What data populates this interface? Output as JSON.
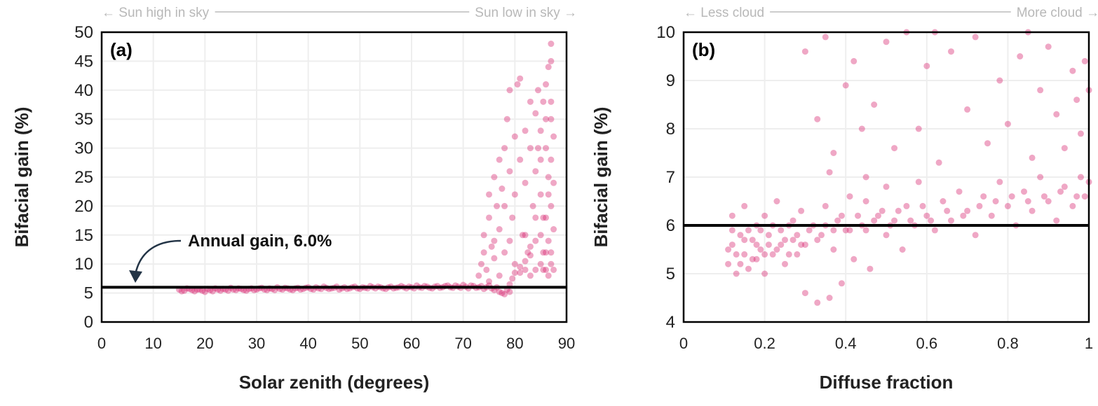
{
  "chart_data": [
    {
      "type": "scatter",
      "panel_label": "(a)",
      "xlabel": "Solar zenith (degrees)",
      "ylabel": "Bifacial gain (%)",
      "xlim": [
        0,
        90
      ],
      "ylim": [
        0,
        50
      ],
      "xticks": [
        0,
        10,
        20,
        30,
        40,
        50,
        60,
        70,
        80,
        90
      ],
      "yticks": [
        0,
        5,
        10,
        15,
        20,
        25,
        30,
        35,
        40,
        45,
        50
      ],
      "grid": true,
      "marker_color": "#d6246e",
      "top_left_note": "← Sun high in sky",
      "top_right_note": "Sun low in sky →",
      "reference_line": {
        "y": 6.0,
        "label": "Annual gain, 6.0%"
      },
      "points": [
        [
          15,
          5.6
        ],
        [
          16,
          5.4
        ],
        [
          17,
          5.7
        ],
        [
          18,
          5.3
        ],
        [
          19,
          5.6
        ],
        [
          20,
          5.2
        ],
        [
          21,
          5.5
        ],
        [
          22,
          5.8
        ],
        [
          23,
          5.4
        ],
        [
          24,
          5.6
        ],
        [
          25,
          5.9
        ],
        [
          26,
          5.5
        ],
        [
          27,
          5.7
        ],
        [
          28,
          5.4
        ],
        [
          29,
          5.8
        ],
        [
          30,
          5.6
        ],
        [
          31,
          5.9
        ],
        [
          32,
          5.5
        ],
        [
          33,
          5.7
        ],
        [
          34,
          6.0
        ],
        [
          35,
          5.6
        ],
        [
          36,
          5.8
        ],
        [
          37,
          5.5
        ],
        [
          38,
          5.9
        ],
        [
          39,
          5.7
        ],
        [
          40,
          6.0
        ],
        [
          41,
          5.6
        ],
        [
          42,
          5.8
        ],
        [
          43,
          6.1
        ],
        [
          44,
          5.7
        ],
        [
          45,
          5.9
        ],
        [
          46,
          5.6
        ],
        [
          47,
          6.0
        ],
        [
          48,
          5.8
        ],
        [
          49,
          6.1
        ],
        [
          50,
          5.7
        ],
        [
          51,
          5.9
        ],
        [
          52,
          6.2
        ],
        [
          53,
          5.8
        ],
        [
          54,
          6.0
        ],
        [
          55,
          5.7
        ],
        [
          56,
          6.1
        ],
        [
          57,
          5.9
        ],
        [
          58,
          6.2
        ],
        [
          59,
          5.8
        ],
        [
          60,
          6.0
        ],
        [
          61,
          6.3
        ],
        [
          62,
          5.9
        ],
        [
          63,
          6.1
        ],
        [
          64,
          5.8
        ],
        [
          65,
          6.2
        ],
        [
          66,
          6.0
        ],
        [
          67,
          6.3
        ],
        [
          68,
          5.9
        ],
        [
          69,
          6.1
        ],
        [
          70,
          6.4
        ],
        [
          71,
          5.8
        ],
        [
          72,
          6.2
        ],
        [
          73,
          6.0
        ],
        [
          74,
          5.7
        ],
        [
          75,
          6.3
        ],
        [
          76,
          5.5
        ],
        [
          77,
          5.2
        ],
        [
          78,
          4.8
        ],
        [
          77.5,
          5.0
        ],
        [
          79,
          6.5
        ],
        [
          79.5,
          7.5
        ],
        [
          80,
          8.5
        ],
        [
          81,
          9.5
        ],
        [
          82,
          10.5
        ],
        [
          83,
          11.5
        ],
        [
          15.5,
          5.3
        ],
        [
          16.5,
          5.8
        ],
        [
          17.5,
          5.5
        ],
        [
          18.5,
          5.6
        ],
        [
          19.5,
          5.4
        ],
        [
          20.5,
          5.7
        ],
        [
          21.5,
          5.3
        ],
        [
          22.5,
          5.6
        ],
        [
          23.5,
          5.7
        ],
        [
          24.5,
          5.4
        ],
        [
          25.5,
          5.6
        ],
        [
          26.5,
          5.8
        ],
        [
          27.5,
          5.5
        ],
        [
          28.5,
          5.7
        ],
        [
          29.5,
          5.5
        ],
        [
          30.5,
          5.8
        ],
        [
          31.5,
          5.6
        ],
        [
          32.5,
          5.8
        ],
        [
          33.5,
          5.5
        ],
        [
          34.5,
          5.7
        ],
        [
          35.5,
          5.9
        ],
        [
          36.5,
          5.6
        ],
        [
          37.5,
          5.8
        ],
        [
          38.5,
          5.6
        ],
        [
          39.5,
          5.9
        ],
        [
          40.5,
          5.7
        ],
        [
          41.5,
          6.0
        ],
        [
          42.5,
          5.7
        ],
        [
          43.5,
          5.9
        ],
        [
          44.5,
          5.8
        ],
        [
          45.5,
          6.1
        ],
        [
          46.5,
          5.8
        ],
        [
          47.5,
          5.7
        ],
        [
          48.5,
          6.0
        ],
        [
          49.5,
          5.8
        ],
        [
          50.5,
          6.0
        ],
        [
          51.5,
          5.8
        ],
        [
          52.5,
          6.0
        ],
        [
          53.5,
          6.1
        ],
        [
          54.5,
          5.8
        ],
        [
          55.5,
          6.0
        ],
        [
          56.5,
          5.8
        ],
        [
          57.5,
          6.0
        ],
        [
          58.5,
          6.0
        ],
        [
          59.5,
          6.1
        ],
        [
          60.5,
          5.8
        ],
        [
          61.5,
          6.0
        ],
        [
          62.5,
          6.2
        ],
        [
          63.5,
          5.9
        ],
        [
          64.5,
          6.1
        ],
        [
          65.5,
          5.9
        ],
        [
          66.5,
          6.2
        ],
        [
          67.5,
          6.0
        ],
        [
          68.5,
          6.3
        ],
        [
          69.5,
          5.9
        ],
        [
          70.5,
          6.1
        ],
        [
          71.5,
          6.3
        ],
        [
          72.5,
          5.9
        ],
        [
          73.5,
          6.2
        ],
        [
          74.5,
          6.0
        ],
        [
          75.5,
          5.8
        ],
        [
          76.5,
          6.0
        ],
        [
          78.5,
          5.6
        ],
        [
          79,
          5.2
        ],
        [
          73,
          8
        ],
        [
          73.5,
          10
        ],
        [
          74,
          12
        ],
        [
          74,
          15
        ],
        [
          74.5,
          9
        ],
        [
          75,
          18
        ],
        [
          75,
          22
        ],
        [
          75.5,
          13
        ],
        [
          76,
          25
        ],
        [
          76,
          11
        ],
        [
          76.5,
          20
        ],
        [
          77,
          28
        ],
        [
          77,
          16
        ],
        [
          77.5,
          23
        ],
        [
          78,
          30
        ],
        [
          78,
          12
        ],
        [
          78.5,
          35
        ],
        [
          79,
          26
        ],
        [
          79,
          40
        ],
        [
          79.5,
          18
        ],
        [
          80,
          32
        ],
        [
          80,
          22
        ],
        [
          80.5,
          41
        ],
        [
          81,
          42
        ],
        [
          81,
          28
        ],
        [
          81.5,
          15
        ],
        [
          82,
          33
        ],
        [
          82,
          24
        ],
        [
          82.5,
          12
        ],
        [
          83,
          38
        ],
        [
          83,
          30
        ],
        [
          83.5,
          20
        ],
        [
          84,
          36
        ],
        [
          84,
          26
        ],
        [
          84,
          14
        ],
        [
          84.5,
          40
        ],
        [
          85,
          33
        ],
        [
          85,
          22
        ],
        [
          85,
          10
        ],
        [
          85.5,
          38
        ],
        [
          86,
          41
        ],
        [
          86,
          30
        ],
        [
          86,
          18
        ],
        [
          86,
          9
        ],
        [
          86.5,
          44
        ],
        [
          86.5,
          25
        ],
        [
          87,
          48
        ],
        [
          87,
          45
        ],
        [
          87,
          35
        ],
        [
          87,
          28
        ],
        [
          87,
          20
        ],
        [
          87,
          12
        ],
        [
          87.5,
          32
        ],
        [
          87.5,
          16
        ],
        [
          86.5,
          14
        ],
        [
          85.5,
          12
        ],
        [
          84,
          9
        ],
        [
          83,
          8
        ],
        [
          82,
          9
        ],
        [
          81,
          8.5
        ],
        [
          80,
          10
        ],
        [
          79,
          14
        ],
        [
          78,
          20
        ],
        [
          77,
          8
        ],
        [
          76,
          14
        ],
        [
          75,
          7
        ],
        [
          84.5,
          30
        ],
        [
          85,
          28
        ],
        [
          86,
          35
        ],
        [
          87,
          38
        ],
        [
          86.5,
          22
        ],
        [
          85.5,
          18
        ],
        [
          86,
          12
        ],
        [
          87,
          10
        ],
        [
          85,
          15
        ],
        [
          84,
          18
        ],
        [
          83,
          13
        ],
        [
          82,
          15
        ],
        [
          86.5,
          8
        ],
        [
          85.5,
          9
        ],
        [
          87.5,
          24
        ],
        [
          87.5,
          9
        ]
      ]
    },
    {
      "type": "scatter",
      "panel_label": "(b)",
      "xlabel": "Diffuse fraction",
      "ylabel": "Bifacial gain (%)",
      "xlim": [
        0,
        1
      ],
      "ylim": [
        4,
        10
      ],
      "xticks": [
        "0",
        "0.2",
        "0.4",
        "0.6",
        "0.8",
        "1"
      ],
      "yticks": [
        4,
        5,
        6,
        7,
        8,
        9,
        10
      ],
      "grid": true,
      "marker_color": "#d6246e",
      "top_left_note": "← Less cloud",
      "top_right_note": "More cloud →",
      "reference_line": {
        "y": 6.0
      },
      "points": [
        [
          0.11,
          5.2
        ],
        [
          0.12,
          5.6
        ],
        [
          0.12,
          6.2
        ],
        [
          0.13,
          5.0
        ],
        [
          0.14,
          5.8
        ],
        [
          0.15,
          5.4
        ],
        [
          0.15,
          6.4
        ],
        [
          0.16,
          5.1
        ],
        [
          0.17,
          5.7
        ],
        [
          0.18,
          6.0
        ],
        [
          0.18,
          5.3
        ],
        [
          0.19,
          5.5
        ],
        [
          0.2,
          6.2
        ],
        [
          0.2,
          5.0
        ],
        [
          0.21,
          5.8
        ],
        [
          0.22,
          5.4
        ],
        [
          0.23,
          6.5
        ],
        [
          0.24,
          5.6
        ],
        [
          0.25,
          5.2
        ],
        [
          0.26,
          6.0
        ],
        [
          0.27,
          5.7
        ],
        [
          0.28,
          5.4
        ],
        [
          0.29,
          6.3
        ],
        [
          0.3,
          5.6
        ],
        [
          0.3,
          4.6
        ],
        [
          0.32,
          6.0
        ],
        [
          0.33,
          4.4
        ],
        [
          0.34,
          5.8
        ],
        [
          0.35,
          6.4
        ],
        [
          0.36,
          4.5
        ],
        [
          0.37,
          5.5
        ],
        [
          0.38,
          6.1
        ],
        [
          0.39,
          4.8
        ],
        [
          0.4,
          5.9
        ],
        [
          0.41,
          6.6
        ],
        [
          0.42,
          5.3
        ],
        [
          0.44,
          6.0
        ],
        [
          0.45,
          6.5
        ],
        [
          0.46,
          5.1
        ],
        [
          0.48,
          6.2
        ],
        [
          0.5,
          5.8
        ],
        [
          0.5,
          6.8
        ],
        [
          0.52,
          6.1
        ],
        [
          0.54,
          5.5
        ],
        [
          0.55,
          6.4
        ],
        [
          0.57,
          6.0
        ],
        [
          0.58,
          6.9
        ],
        [
          0.6,
          6.2
        ],
        [
          0.62,
          5.9
        ],
        [
          0.64,
          6.5
        ],
        [
          0.66,
          6.1
        ],
        [
          0.68,
          6.7
        ],
        [
          0.7,
          6.3
        ],
        [
          0.72,
          5.8
        ],
        [
          0.74,
          6.6
        ],
        [
          0.76,
          6.2
        ],
        [
          0.78,
          6.9
        ],
        [
          0.8,
          6.4
        ],
        [
          0.82,
          6.0
        ],
        [
          0.84,
          6.7
        ],
        [
          0.86,
          6.3
        ],
        [
          0.88,
          7.0
        ],
        [
          0.9,
          6.5
        ],
        [
          0.92,
          6.1
        ],
        [
          0.94,
          6.8
        ],
        [
          0.96,
          6.4
        ],
        [
          0.98,
          7.0
        ],
        [
          0.99,
          6.6
        ],
        [
          1.0,
          6.9
        ],
        [
          1.0,
          8.8
        ],
        [
          0.11,
          5.5
        ],
        [
          0.12,
          5.9
        ],
        [
          0.13,
          5.4
        ],
        [
          0.14,
          5.2
        ],
        [
          0.15,
          5.7
        ],
        [
          0.16,
          5.9
        ],
        [
          0.17,
          5.3
        ],
        [
          0.18,
          5.6
        ],
        [
          0.19,
          5.9
        ],
        [
          0.2,
          5.4
        ],
        [
          0.21,
          5.6
        ],
        [
          0.22,
          6.0
        ],
        [
          0.23,
          5.5
        ],
        [
          0.24,
          5.9
        ],
        [
          0.25,
          5.7
        ],
        [
          0.26,
          5.4
        ],
        [
          0.27,
          6.1
        ],
        [
          0.28,
          5.8
        ],
        [
          0.29,
          5.6
        ],
        [
          0.31,
          5.9
        ],
        [
          0.33,
          5.7
        ],
        [
          0.35,
          6.0
        ],
        [
          0.37,
          5.9
        ],
        [
          0.39,
          6.2
        ],
        [
          0.41,
          5.9
        ],
        [
          0.43,
          6.2
        ],
        [
          0.45,
          5.9
        ],
        [
          0.47,
          6.1
        ],
        [
          0.49,
          6.3
        ],
        [
          0.51,
          6.0
        ],
        [
          0.53,
          6.3
        ],
        [
          0.56,
          6.1
        ],
        [
          0.59,
          6.4
        ],
        [
          0.61,
          6.1
        ],
        [
          0.65,
          6.3
        ],
        [
          0.69,
          6.2
        ],
        [
          0.73,
          6.4
        ],
        [
          0.77,
          6.5
        ],
        [
          0.81,
          6.6
        ],
        [
          0.85,
          6.5
        ],
        [
          0.89,
          6.6
        ],
        [
          0.93,
          6.7
        ],
        [
          0.97,
          6.6
        ],
        [
          0.3,
          9.6
        ],
        [
          0.33,
          8.2
        ],
        [
          0.35,
          9.9
        ],
        [
          0.37,
          7.5
        ],
        [
          0.4,
          8.9
        ],
        [
          0.42,
          9.4
        ],
        [
          0.45,
          7.0
        ],
        [
          0.47,
          8.5
        ],
        [
          0.5,
          9.8
        ],
        [
          0.52,
          7.6
        ],
        [
          0.55,
          10.0
        ],
        [
          0.58,
          8.0
        ],
        [
          0.6,
          9.3
        ],
        [
          0.63,
          7.3
        ],
        [
          0.66,
          9.6
        ],
        [
          0.7,
          8.4
        ],
        [
          0.72,
          9.9
        ],
        [
          0.75,
          7.7
        ],
        [
          0.78,
          9.0
        ],
        [
          0.8,
          8.1
        ],
        [
          0.83,
          9.5
        ],
        [
          0.86,
          7.4
        ],
        [
          0.88,
          8.8
        ],
        [
          0.9,
          9.7
        ],
        [
          0.92,
          8.3
        ],
        [
          0.94,
          7.6
        ],
        [
          0.96,
          9.2
        ],
        [
          0.97,
          8.6
        ],
        [
          0.98,
          7.9
        ],
        [
          0.99,
          9.4
        ],
        [
          0.36,
          7.1
        ],
        [
          0.44,
          8.0
        ],
        [
          0.62,
          10.0
        ],
        [
          0.85,
          10.0
        ]
      ]
    }
  ]
}
